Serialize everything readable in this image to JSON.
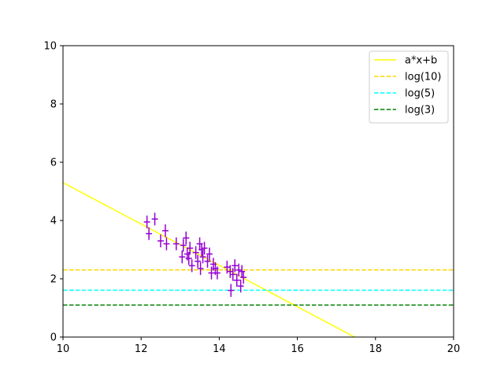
{
  "chart_data": {
    "type": "scatter",
    "title": "",
    "xlabel": "",
    "ylabel": "",
    "xlim": [
      10,
      20
    ],
    "ylim": [
      0,
      10
    ],
    "xticks": [
      10,
      12,
      14,
      16,
      18,
      20
    ],
    "yticks": [
      0,
      2,
      4,
      6,
      8,
      10
    ],
    "grid": false,
    "legend_position": "top-right",
    "fit_line": {
      "name": "a*x+b",
      "color": "#ffff00",
      "style": "solid",
      "slope": -0.71,
      "intercept": 12.4
    },
    "hlines": [
      {
        "name": "log(10)",
        "y": 2.302585,
        "color": "#ffd700",
        "style": "dashed"
      },
      {
        "name": "log(5)",
        "y": 1.609438,
        "color": "#00ffff",
        "style": "dashed"
      },
      {
        "name": "log(3)",
        "y": 1.098612,
        "color": "#008000",
        "style": "dashed"
      }
    ],
    "points_color": "#9400d3",
    "points": [
      {
        "x": 12.15,
        "y": 3.95,
        "xerr": 0.08,
        "yerr": 0.22
      },
      {
        "x": 12.2,
        "y": 3.55,
        "xerr": 0.08,
        "yerr": 0.22
      },
      {
        "x": 12.35,
        "y": 4.05,
        "xerr": 0.08,
        "yerr": 0.22
      },
      {
        "x": 12.5,
        "y": 3.3,
        "xerr": 0.08,
        "yerr": 0.22
      },
      {
        "x": 12.62,
        "y": 3.65,
        "xerr": 0.08,
        "yerr": 0.22
      },
      {
        "x": 12.65,
        "y": 3.2,
        "xerr": 0.08,
        "yerr": 0.22
      },
      {
        "x": 12.9,
        "y": 3.2,
        "xerr": 0.08,
        "yerr": 0.22
      },
      {
        "x": 13.05,
        "y": 2.75,
        "xerr": 0.08,
        "yerr": 0.22
      },
      {
        "x": 13.08,
        "y": 3.15,
        "xerr": 0.08,
        "yerr": 0.22
      },
      {
        "x": 13.15,
        "y": 3.4,
        "xerr": 0.08,
        "yerr": 0.22
      },
      {
        "x": 13.18,
        "y": 2.85,
        "xerr": 0.08,
        "yerr": 0.22
      },
      {
        "x": 13.22,
        "y": 2.7,
        "xerr": 0.08,
        "yerr": 0.22
      },
      {
        "x": 13.25,
        "y": 3.05,
        "xerr": 0.08,
        "yerr": 0.22
      },
      {
        "x": 13.3,
        "y": 2.45,
        "xerr": 0.08,
        "yerr": 0.22
      },
      {
        "x": 13.4,
        "y": 2.9,
        "xerr": 0.08,
        "yerr": 0.22
      },
      {
        "x": 13.45,
        "y": 2.6,
        "xerr": 0.08,
        "yerr": 0.22
      },
      {
        "x": 13.5,
        "y": 3.2,
        "xerr": 0.08,
        "yerr": 0.22
      },
      {
        "x": 13.52,
        "y": 2.35,
        "xerr": 0.08,
        "yerr": 0.22
      },
      {
        "x": 13.55,
        "y": 3.0,
        "xerr": 0.08,
        "yerr": 0.22
      },
      {
        "x": 13.58,
        "y": 2.75,
        "xerr": 0.08,
        "yerr": 0.22
      },
      {
        "x": 13.62,
        "y": 3.05,
        "xerr": 0.08,
        "yerr": 0.22
      },
      {
        "x": 13.7,
        "y": 2.6,
        "xerr": 0.08,
        "yerr": 0.22
      },
      {
        "x": 13.75,
        "y": 2.85,
        "xerr": 0.08,
        "yerr": 0.22
      },
      {
        "x": 13.8,
        "y": 2.2,
        "xerr": 0.08,
        "yerr": 0.22
      },
      {
        "x": 13.85,
        "y": 2.5,
        "xerr": 0.08,
        "yerr": 0.22
      },
      {
        "x": 13.9,
        "y": 2.35,
        "xerr": 0.08,
        "yerr": 0.22
      },
      {
        "x": 13.95,
        "y": 2.2,
        "xerr": 0.08,
        "yerr": 0.22
      },
      {
        "x": 14.2,
        "y": 2.4,
        "xerr": 0.08,
        "yerr": 0.22
      },
      {
        "x": 14.28,
        "y": 2.25,
        "xerr": 0.08,
        "yerr": 0.22
      },
      {
        "x": 14.3,
        "y": 1.6,
        "xerr": 0.08,
        "yerr": 0.22
      },
      {
        "x": 14.35,
        "y": 2.15,
        "xerr": 0.08,
        "yerr": 0.22
      },
      {
        "x": 14.4,
        "y": 2.45,
        "xerr": 0.08,
        "yerr": 0.22
      },
      {
        "x": 14.45,
        "y": 1.95,
        "xerr": 0.08,
        "yerr": 0.22
      },
      {
        "x": 14.5,
        "y": 2.3,
        "xerr": 0.08,
        "yerr": 0.22
      },
      {
        "x": 14.55,
        "y": 1.75,
        "xerr": 0.08,
        "yerr": 0.22
      },
      {
        "x": 14.58,
        "y": 2.25,
        "xerr": 0.08,
        "yerr": 0.22
      },
      {
        "x": 14.62,
        "y": 2.05,
        "xerr": 0.08,
        "yerr": 0.22
      }
    ]
  }
}
